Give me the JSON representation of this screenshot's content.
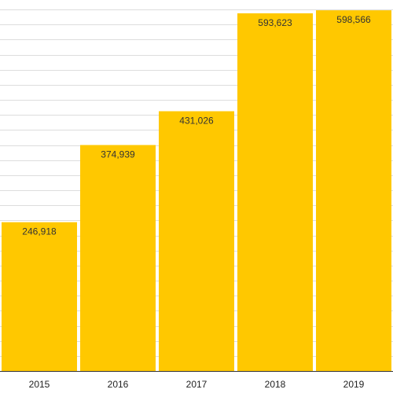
{
  "chart_data": {
    "type": "bar",
    "title": "",
    "xlabel": "",
    "ylabel": "",
    "categories": [
      "2015",
      "2016",
      "2017",
      "2018",
      "2019"
    ],
    "values": [
      246918,
      374939,
      431026,
      593623,
      598566
    ],
    "value_labels": [
      "246,918",
      "374,939",
      "431,026",
      "593,623",
      "598,566"
    ],
    "ylim": [
      0,
      600000
    ],
    "grid": true,
    "legend": "none",
    "colors": {
      "bar": "#FFC800",
      "grid": "#DDDDDD",
      "axis": "#333333",
      "background": "#FFFFFF"
    }
  }
}
